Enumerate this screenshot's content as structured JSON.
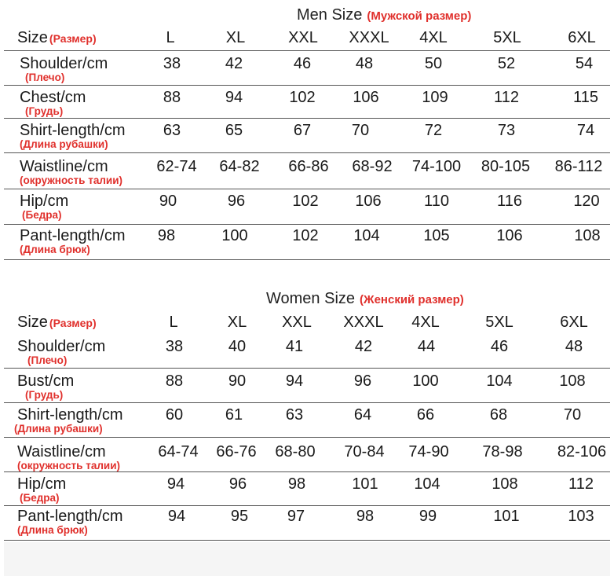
{
  "men": {
    "title": "Men Size",
    "title_ru": "(Мужской размер)",
    "header": {
      "label": "Size",
      "label_ru": "(Размер)",
      "sizes": [
        "L",
        "XL",
        "XXL",
        "XXXL",
        "4XL",
        "5XL",
        "6XL"
      ]
    },
    "rows": [
      {
        "label": "Shoulder/cm",
        "sub": "(Плечо)",
        "values": [
          "38",
          "42",
          "46",
          "48",
          "50",
          "52",
          "54"
        ]
      },
      {
        "label": "Chest/cm",
        "sub": "(Грудь)",
        "values": [
          "88",
          "94",
          "102",
          "106",
          "109",
          "112",
          "115"
        ]
      },
      {
        "label": "Shirt-length/cm",
        "sub": "(Длина рубашки)",
        "values": [
          "63",
          "65",
          "67",
          "70",
          "72",
          "73",
          "74"
        ]
      },
      {
        "label": "Waistline/cm",
        "sub": "(окружность талии)",
        "values": [
          "62-74",
          "64-82",
          "66-86",
          "68-92",
          "74-100",
          "80-105",
          "86-112"
        ]
      },
      {
        "label": "Hip/cm",
        "sub": "(Бедра)",
        "values": [
          "90",
          "96",
          "102",
          "106",
          "110",
          "116",
          "120"
        ]
      },
      {
        "label": "Pant-length/cm",
        "sub": "(Длина брюк)",
        "values": [
          "98",
          "100",
          "102",
          "104",
          "105",
          "106",
          "108"
        ]
      }
    ]
  },
  "women": {
    "title": "Women Size",
    "title_ru": "(Женский размер)",
    "header": {
      "label": "Size",
      "label_ru": "(Размер)",
      "sizes": [
        "L",
        "XL",
        "XXL",
        "XXXL",
        "4XL",
        "5XL",
        "6XL"
      ]
    },
    "rows": [
      {
        "label": "Shoulder/cm",
        "sub": "(Плечо)",
        "values": [
          "38",
          "40",
          "41",
          "42",
          "44",
          "46",
          "48"
        ]
      },
      {
        "label": "Bust/cm",
        "sub": "(Грудь)",
        "values": [
          "88",
          "90",
          "94",
          "96",
          "100",
          "104",
          "108"
        ]
      },
      {
        "label": "Shirt-length/cm",
        "sub": "(Длина рубашки)",
        "values": [
          "60",
          "61",
          "63",
          "64",
          "66",
          "68",
          "70"
        ]
      },
      {
        "label": "Waistline/cm",
        "sub": "(окружность талии)",
        "values": [
          "64-74",
          "66-76",
          "68-80",
          "70-84",
          "74-90",
          "78-98",
          "82-106"
        ]
      },
      {
        "label": "Hip/cm",
        "sub": "(Бедра)",
        "values": [
          "94",
          "96",
          "98",
          "101",
          "104",
          "108",
          "112"
        ]
      },
      {
        "label": "Pant-length/cm",
        "sub": "(Длина брюк)",
        "values": [
          "94",
          "95",
          "97",
          "98",
          "99",
          "101",
          "103"
        ]
      }
    ]
  }
}
